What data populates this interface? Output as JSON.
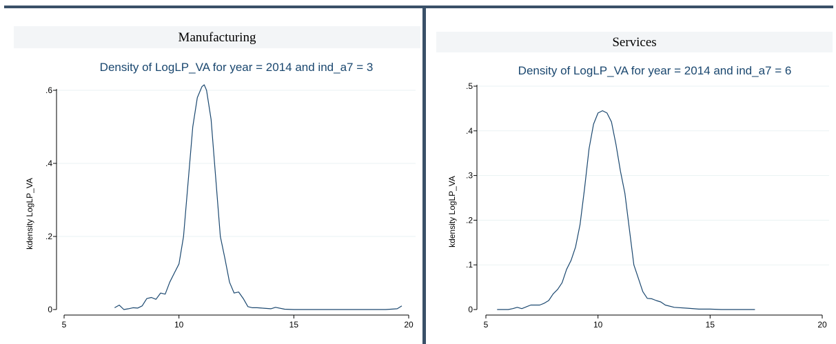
{
  "panels": [
    {
      "heading": "Manufacturing"
    },
    {
      "heading": "Services"
    }
  ],
  "colors": {
    "line": "#1a476f",
    "title": "#1a476f",
    "rule": "#3a5068",
    "grid": "#eaf2f3"
  },
  "chart_data": [
    {
      "type": "line",
      "title": "Density of LogLP_VA for year = 2014 and ind_a7 = 3",
      "xlabel": "",
      "ylabel": "kdensity LogLP_VA",
      "xlim": [
        5,
        20
      ],
      "ylim": [
        0,
        0.6
      ],
      "xticks": [
        5,
        10,
        15,
        20
      ],
      "yticks": [
        0,
        0.2,
        0.4,
        0.6
      ],
      "xtick_labels": [
        "5",
        "10",
        "15",
        "20"
      ],
      "ytick_labels": [
        "0",
        ".2",
        ".4",
        ".6"
      ],
      "grid": true,
      "series": [
        {
          "x": [
            7.2,
            7.4,
            7.6,
            7.8,
            8.0,
            8.2,
            8.4,
            8.6,
            8.8,
            9.0,
            9.2,
            9.4,
            9.6,
            9.8,
            10.0,
            10.2,
            10.4,
            10.6,
            10.8,
            11.0,
            11.1,
            11.2,
            11.4,
            11.6,
            11.8,
            12.0,
            12.2,
            12.4,
            12.6,
            12.8,
            13.0,
            13.2,
            13.4,
            13.6,
            14.0,
            14.2,
            14.6,
            15.0,
            16.0,
            17.0,
            18.0,
            19.0,
            19.5,
            19.7
          ],
          "y": [
            0.005,
            0.012,
            0.0,
            0.002,
            0.005,
            0.004,
            0.01,
            0.03,
            0.033,
            0.028,
            0.045,
            0.042,
            0.075,
            0.1,
            0.125,
            0.2,
            0.35,
            0.5,
            0.58,
            0.61,
            0.615,
            0.6,
            0.52,
            0.36,
            0.2,
            0.14,
            0.075,
            0.045,
            0.048,
            0.03,
            0.008,
            0.005,
            0.005,
            0.004,
            0.002,
            0.006,
            0.001,
            0.0,
            0.0,
            0.0,
            0.0,
            0.0,
            0.002,
            0.01
          ]
        }
      ]
    },
    {
      "type": "line",
      "title": "Density of LogLP_VA for year = 2014 and ind_a7 = 6",
      "xlabel": "",
      "ylabel": "kdensity LogLP_VA",
      "xlim": [
        5,
        20
      ],
      "ylim": [
        0,
        0.5
      ],
      "xticks": [
        5,
        10,
        15,
        20
      ],
      "yticks": [
        0,
        0.1,
        0.2,
        0.3,
        0.4,
        0.5
      ],
      "xtick_labels": [
        "5",
        "10",
        "15",
        "20"
      ],
      "ytick_labels": [
        "0",
        ".1",
        ".2",
        ".3",
        ".4",
        ".5"
      ],
      "grid": true,
      "series": [
        {
          "x": [
            5.5,
            6.0,
            6.2,
            6.4,
            6.6,
            6.8,
            7.0,
            7.4,
            7.6,
            7.8,
            8.0,
            8.2,
            8.4,
            8.6,
            8.8,
            9.0,
            9.2,
            9.4,
            9.6,
            9.8,
            10.0,
            10.2,
            10.4,
            10.6,
            10.8,
            11.0,
            11.2,
            11.4,
            11.6,
            11.8,
            12.0,
            12.2,
            12.4,
            12.6,
            12.8,
            13.0,
            13.4,
            14.0,
            14.5,
            15.0,
            15.5,
            16.0,
            17.0
          ],
          "y": [
            0.0,
            0.0,
            0.002,
            0.005,
            0.002,
            0.006,
            0.01,
            0.01,
            0.014,
            0.02,
            0.035,
            0.045,
            0.06,
            0.09,
            0.11,
            0.14,
            0.19,
            0.27,
            0.36,
            0.415,
            0.44,
            0.445,
            0.44,
            0.42,
            0.37,
            0.31,
            0.26,
            0.18,
            0.1,
            0.07,
            0.04,
            0.025,
            0.024,
            0.02,
            0.017,
            0.01,
            0.005,
            0.003,
            0.001,
            0.001,
            0.0,
            0.0,
            0.0
          ]
        }
      ]
    }
  ]
}
